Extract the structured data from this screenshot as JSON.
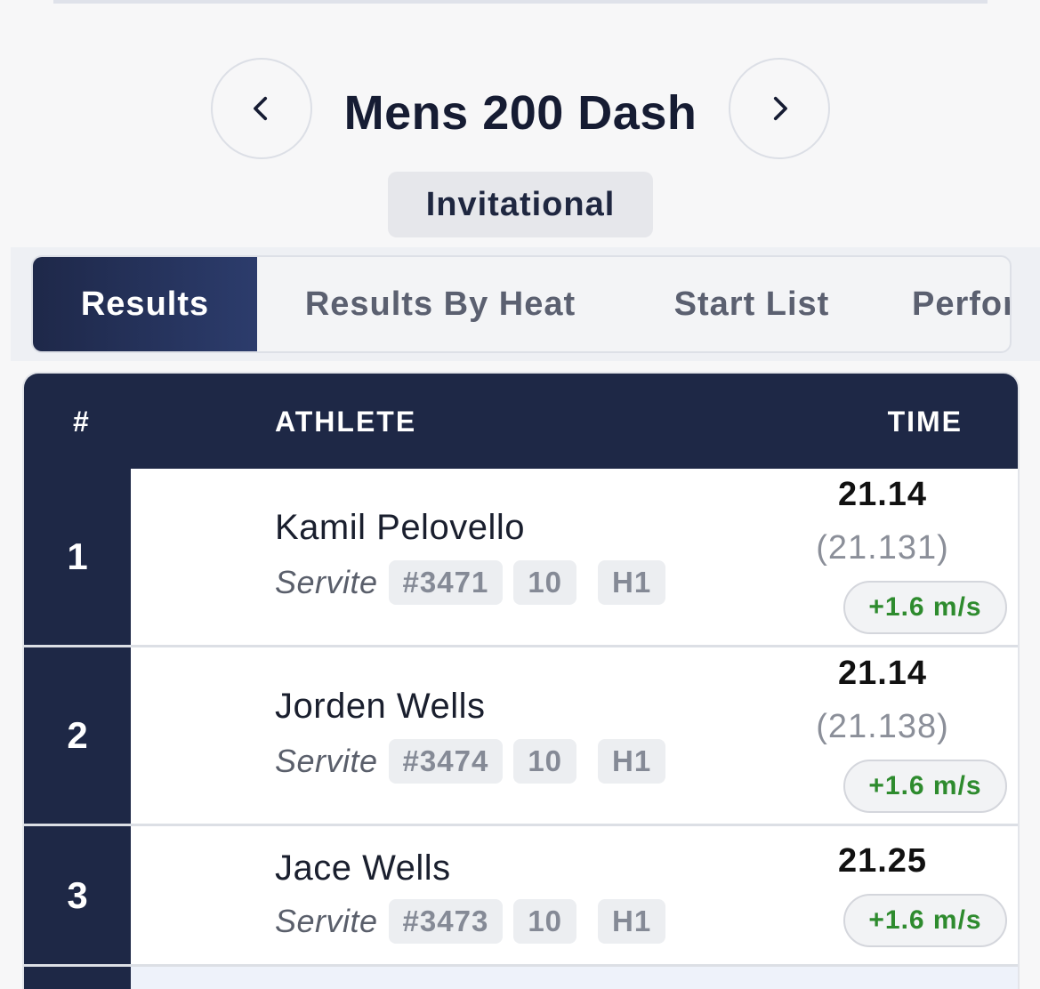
{
  "header": {
    "title": "Mens 200 Dash",
    "badge": "Invitational",
    "prev_icon": "chevron-left-icon",
    "next_icon": "chevron-right-icon"
  },
  "tabs": [
    {
      "label": "Results",
      "active": true
    },
    {
      "label": "Results By Heat",
      "active": false
    },
    {
      "label": "Start List",
      "active": false
    },
    {
      "label": "Perfor",
      "active": false
    }
  ],
  "table": {
    "headers": {
      "rank": "#",
      "athlete": "ATHLETE",
      "time": "TIME"
    },
    "rows": [
      {
        "rank": "1",
        "name": "Kamil Pelovello",
        "school": "Servite",
        "bib": "#3471",
        "grade": "10",
        "heat": "H1",
        "time": "21.14",
        "precise": "(21.131)",
        "wind": "+1.6 m/s"
      },
      {
        "rank": "2",
        "name": "Jorden Wells",
        "school": "Servite",
        "bib": "#3474",
        "grade": "10",
        "heat": "H1",
        "time": "21.14",
        "precise": "(21.138)",
        "wind": "+1.6 m/s"
      },
      {
        "rank": "3",
        "name": "Jace Wells",
        "school": "Servite",
        "bib": "#3473",
        "grade": "10",
        "heat": "H1",
        "time": "21.25",
        "precise": "",
        "wind": "+1.6 m/s"
      }
    ]
  },
  "colors": {
    "navy": "#1e2846",
    "wind_green": "#2e8b2e",
    "background": "#f7f7f8"
  }
}
